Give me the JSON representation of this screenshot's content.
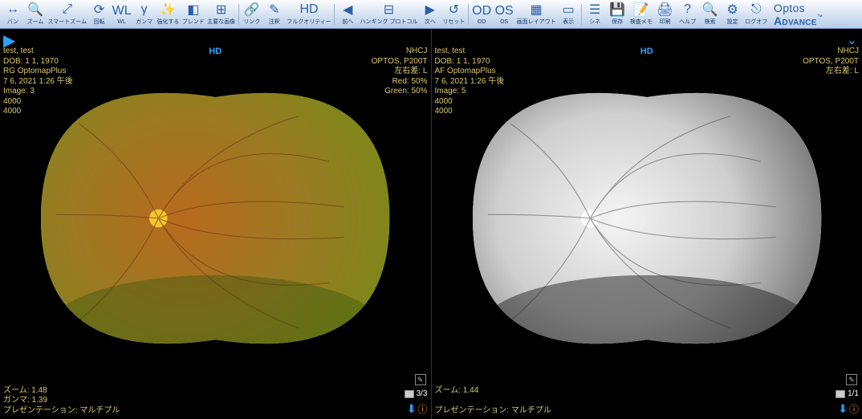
{
  "toolbar": {
    "left": [
      {
        "name": "pan-btn",
        "icon": "↔",
        "label": "バン"
      },
      {
        "name": "zoom-btn",
        "icon": "🔍",
        "label": "ズーム"
      },
      {
        "name": "smart-zoom-btn",
        "icon": "⤢",
        "label": "スマートズーム"
      },
      {
        "name": "rotate-btn",
        "icon": "⟳",
        "label": "回転"
      },
      {
        "name": "wl-btn",
        "icon": "WL",
        "label": "WL"
      },
      {
        "name": "gamma-btn",
        "icon": "γ",
        "label": "ガンマ"
      },
      {
        "name": "enhance-btn",
        "icon": "✨",
        "label": "強化する"
      },
      {
        "name": "blend-btn",
        "icon": "◧",
        "label": "ブレンド"
      },
      {
        "name": "thumbnail-btn",
        "icon": "⊞",
        "label": "主要な画像"
      }
    ],
    "mid1": [
      {
        "name": "link-btn",
        "icon": "🔗",
        "label": "リンク"
      },
      {
        "name": "annotate-btn",
        "icon": "✎",
        "label": "注釈"
      },
      {
        "name": "hd-btn",
        "icon": "HD",
        "label": "フルクオリティー"
      }
    ],
    "mid2": [
      {
        "name": "prev-btn",
        "icon": "◀",
        "label": "前へ"
      },
      {
        "name": "hanging-btn",
        "icon": "⊟",
        "label": "ハンギング プロトコル"
      },
      {
        "name": "next-btn",
        "icon": "▶",
        "label": "次へ"
      },
      {
        "name": "reset-btn",
        "icon": "↺",
        "label": "リセット"
      }
    ],
    "mid3": [
      {
        "name": "od-btn",
        "icon": "OD",
        "label": "OD"
      },
      {
        "name": "os-btn",
        "icon": "OS",
        "label": "OS"
      },
      {
        "name": "layout-btn",
        "icon": "▦",
        "label": "画面レイアウト"
      },
      {
        "name": "display-btn",
        "icon": "▭",
        "label": "表示"
      }
    ],
    "mid4": [
      {
        "name": "cine-btn",
        "icon": "☰",
        "label": "シネ"
      },
      {
        "name": "save-btn",
        "icon": "💾",
        "label": "保存"
      },
      {
        "name": "memo-btn",
        "icon": "📝",
        "label": "検査メモ"
      },
      {
        "name": "print-btn",
        "icon": "🖨",
        "label": "印刷"
      }
    ],
    "right": [
      {
        "name": "help-btn",
        "icon": "?",
        "label": "ヘルプ"
      },
      {
        "name": "search-btn",
        "icon": "🔍",
        "label": "検索"
      },
      {
        "name": "settings-btn",
        "icon": "⚙",
        "label": "設定"
      },
      {
        "name": "logoff-btn",
        "icon": "⎋",
        "label": "ログオフ"
      }
    ],
    "logo_a": "Optos",
    "logo_b": "Advance",
    "logo_tm": "™"
  },
  "panes": [
    {
      "id": "left-pane",
      "hd_label": "HD",
      "nav": {
        "play": "▶",
        "chevron": null
      },
      "top_left": [
        "test, test",
        "DOB: 1 1, 1970",
        "RG OptomapPlus",
        "7 6, 2021 1:26 午後",
        "Image: 3",
        "4000",
        "4000"
      ],
      "top_right": [
        "NHCJ",
        "OPTOS, P200T",
        "左右差: L",
        "Red: 50%",
        "Green: 50%"
      ],
      "bot_left": [
        "ズーム: 1.48",
        "ガンマ: 1.39",
        "プレゼンテーション: マルチプル"
      ],
      "counter": "3/3",
      "image": {
        "type": "wide-field-fundus",
        "mode": "color",
        "gradient_center": "#b86a1e",
        "gradient_mid": "#9a7a22",
        "gradient_outer": "#6e8e16",
        "halo": "#9aff2a",
        "optic_disc": "#ffcc33",
        "vessel": "#6b3a12",
        "background": "#000000"
      }
    },
    {
      "id": "right-pane",
      "hd_label": "HD",
      "nav": {
        "play": null,
        "chevron": "⌄"
      },
      "top_left": [
        "test, test",
        "DOB: 1 1, 1970",
        "AF OptomapPlus",
        "7 6, 2021 1:26 午後",
        "Image: 5",
        "4000",
        "4000"
      ],
      "top_right": [
        "NHCJ",
        "OPTOS, P200T",
        "左右差: L"
      ],
      "bot_left": [
        "ズーム: 1.44",
        "",
        "プレゼンテーション: マルチプル"
      ],
      "counter": "1/1",
      "image": {
        "type": "wide-field-fundus",
        "mode": "af-monochrome",
        "gradient_center": "#f4f4f4",
        "gradient_mid": "#cfcfcf",
        "gradient_outer": "#4a4a4a",
        "halo": "#ffffff",
        "optic_disc": "#ffffff",
        "vessel": "#555555",
        "background": "#000000"
      }
    }
  ],
  "ui_colors": {
    "overlay_text": "#d9c96b",
    "hd_text": "#2aa3ff",
    "arrow": "#2aa3ff",
    "toolbar_grad_top": "#fdfdfe",
    "toolbar_grad_bot": "#b7cde9",
    "pane_divider": "#0d3a6b"
  }
}
